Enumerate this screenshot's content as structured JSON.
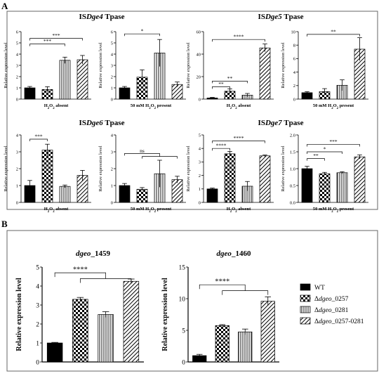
{
  "panels": [
    {
      "label": "A"
    },
    {
      "label": "B"
    }
  ],
  "legend": {
    "entries": [
      {
        "prefix": "",
        "italic": "",
        "suffix": "WT",
        "pattern": "solid"
      },
      {
        "prefix": "Δ",
        "italic": "dgeo",
        "suffix": "_0257",
        "pattern": "checker"
      },
      {
        "prefix": "Δ",
        "italic": "dgeo",
        "suffix": "_0281",
        "pattern": "vlines"
      },
      {
        "prefix": "Δ",
        "italic": "dgeo",
        "suffix": "_0257-0281",
        "pattern": "diag"
      }
    ]
  },
  "group_titles": [
    {
      "prefix": "IS",
      "italic": "Dge4",
      "suffix": " Tpase"
    },
    {
      "prefix": "IS",
      "italic": "Dge5",
      "suffix": " Tpase"
    },
    {
      "prefix": "IS",
      "italic": "Dge6",
      "suffix": " Tpase"
    },
    {
      "prefix": "IS",
      "italic": "Dge7",
      "suffix": " Tpase"
    }
  ],
  "chart_data": [
    {
      "type": "bar",
      "panel": "A",
      "group": 0,
      "ylabel": "Relative expression level",
      "xlabel": {
        "pre": "H",
        "sub1": "2",
        "mid": "O",
        "sub2": "2",
        "post": " absent"
      },
      "ylim": [
        0,
        6
      ],
      "yticks": [
        0,
        1,
        2,
        3,
        4,
        5,
        6
      ],
      "values": [
        1.0,
        0.85,
        3.45,
        3.5
      ],
      "errors": [
        0.12,
        0.25,
        0.28,
        0.38
      ],
      "significance": [
        {
          "text": "***",
          "from": 0,
          "to": [
            3
          ],
          "level": 5.4
        },
        {
          "text": "***",
          "from": 0,
          "to": [
            2
          ],
          "level": 4.9
        }
      ]
    },
    {
      "type": "bar",
      "panel": "A",
      "group": 0,
      "ylabel": "Relative expression level",
      "xlabel": {
        "pre": "50 mM H",
        "sub1": "2",
        "mid": "O",
        "sub2": "2",
        "post": " present"
      },
      "ylim": [
        0,
        6
      ],
      "yticks": [
        0,
        1,
        2,
        3,
        4,
        5,
        6
      ],
      "values": [
        1.0,
        1.95,
        4.1,
        1.3
      ],
      "errors": [
        0.12,
        0.65,
        1.2,
        0.22
      ],
      "significance": [
        {
          "text": "*",
          "from": 0,
          "to": [
            2
          ],
          "level": 5.8
        }
      ]
    },
    {
      "type": "bar",
      "panel": "A",
      "group": 1,
      "ylabel": "Relative expression level",
      "xlabel": {
        "pre": "H",
        "sub1": "2",
        "mid": "O",
        "sub2": "2",
        "post": " absent"
      },
      "ylim": [
        0,
        60
      ],
      "yticks": [
        0,
        20,
        40,
        60
      ],
      "values": [
        1.0,
        7.0,
        3.5,
        45.5
      ],
      "errors": [
        0.5,
        2.0,
        1.5,
        3.5
      ],
      "significance": [
        {
          "text": "****",
          "from": 0,
          "to": [
            3
          ],
          "level": 53
        },
        {
          "text": "**",
          "from": 0,
          "to": [
            2
          ],
          "level": 16
        },
        {
          "text": "**",
          "from": 0,
          "to": [
            1
          ],
          "level": 11
        }
      ]
    },
    {
      "type": "bar",
      "panel": "A",
      "group": 1,
      "ylabel": "Relative expression level",
      "xlabel": {
        "pre": "50 mM H",
        "sub1": "2",
        "mid": "O",
        "sub2": "2",
        "post": " present"
      },
      "ylim": [
        0,
        10
      ],
      "yticks": [
        0,
        2,
        4,
        6,
        8,
        10
      ],
      "values": [
        0.95,
        1.1,
        2.05,
        7.4
      ],
      "errors": [
        0.15,
        0.45,
        0.8,
        1.7
      ],
      "significance": [
        {
          "text": "**",
          "from": 0,
          "to": [
            3
          ],
          "level": 9.6
        }
      ]
    },
    {
      "type": "bar",
      "panel": "A",
      "group": 2,
      "ylabel": "Relative expression level",
      "xlabel": {
        "pre": "H",
        "sub1": "2",
        "mid": "O",
        "sub2": "2",
        "post": " absent"
      },
      "ylim": [
        0,
        4
      ],
      "yticks": [
        0,
        1,
        2,
        3,
        4
      ],
      "values": [
        1.0,
        3.1,
        0.95,
        1.6
      ],
      "errors": [
        0.3,
        0.35,
        0.08,
        0.3
      ],
      "significance": [
        {
          "text": "***",
          "from": 0,
          "to": [
            1
          ],
          "level": 3.75
        }
      ]
    },
    {
      "type": "bar",
      "panel": "A",
      "group": 2,
      "ylabel": "Relative expression level",
      "xlabel": {
        "pre": "50 mM H",
        "sub1": "2",
        "mid": "O",
        "sub2": "2",
        "post": " present"
      },
      "ylim": [
        0,
        4
      ],
      "yticks": [
        0,
        1,
        2,
        3,
        4
      ],
      "values": [
        1.0,
        0.78,
        1.7,
        1.35
      ],
      "errors": [
        0.12,
        0.1,
        0.8,
        0.2
      ],
      "significance": [
        {
          "text": "ns",
          "from": 0,
          "to": [
            1,
            2,
            3
          ],
          "level": 2.9
        }
      ]
    },
    {
      "type": "bar",
      "panel": "A",
      "group": 3,
      "ylabel": "Relative expression level",
      "xlabel": {
        "pre": "H",
        "sub1": "2",
        "mid": "O",
        "sub2": "2",
        "post": " absent"
      },
      "ylim": [
        0,
        5
      ],
      "yticks": [
        0,
        1,
        2,
        3,
        4,
        5
      ],
      "values": [
        1.0,
        3.6,
        1.2,
        3.45
      ],
      "errors": [
        0.06,
        0.18,
        0.35,
        0.06
      ],
      "significance": [
        {
          "text": "****",
          "from": 0,
          "to": [
            3
          ],
          "level": 4.55
        },
        {
          "text": "****",
          "from": 0,
          "to": [
            1
          ],
          "level": 4.0
        }
      ]
    },
    {
      "type": "bar",
      "panel": "A",
      "group": 3,
      "ylabel": "Relative expression level",
      "xlabel": {
        "pre": "50 mM H",
        "sub1": "2",
        "mid": "O",
        "sub2": "2",
        "post": " present"
      },
      "ylim": [
        0,
        2.0
      ],
      "yticks": [
        0.0,
        0.5,
        1.0,
        1.5,
        2.0
      ],
      "values": [
        1.0,
        0.85,
        0.88,
        1.35
      ],
      "errors": [
        0.07,
        0.04,
        0.03,
        0.06
      ],
      "significance": [
        {
          "text": "***",
          "from": 0,
          "to": [
            3
          ],
          "level": 1.72
        },
        {
          "text": "*",
          "from": 0,
          "to": [
            2
          ],
          "level": 1.5
        },
        {
          "text": "**",
          "from": 0,
          "to": [
            1
          ],
          "level": 1.3
        }
      ]
    },
    {
      "type": "bar",
      "panel": "B",
      "ylabel": "Relative expression level",
      "title": {
        "italic": "dgeo",
        "suffix": "_1459"
      },
      "ylim": [
        0,
        5
      ],
      "yticks": [
        0,
        1,
        2,
        3,
        4,
        5
      ],
      "values": [
        1.0,
        3.3,
        2.5,
        4.25
      ],
      "errors": [
        0.03,
        0.1,
        0.15,
        0.12
      ],
      "significance": [
        {
          "text": "****",
          "from": 0,
          "to": [
            1,
            2,
            3
          ],
          "level": 4.7
        }
      ]
    },
    {
      "type": "bar",
      "panel": "B",
      "ylabel": "Relative expression level",
      "title": {
        "italic": "dgeo",
        "suffix": "_1460"
      },
      "ylim": [
        0,
        15
      ],
      "yticks": [
        0,
        5,
        10,
        15
      ],
      "values": [
        1.0,
        5.75,
        4.75,
        9.6
      ],
      "errors": [
        0.2,
        0.15,
        0.45,
        0.7
      ],
      "significance": [
        {
          "text": "****",
          "from": 0,
          "to": [
            1,
            2,
            3
          ],
          "level": 12.2
        }
      ]
    }
  ]
}
